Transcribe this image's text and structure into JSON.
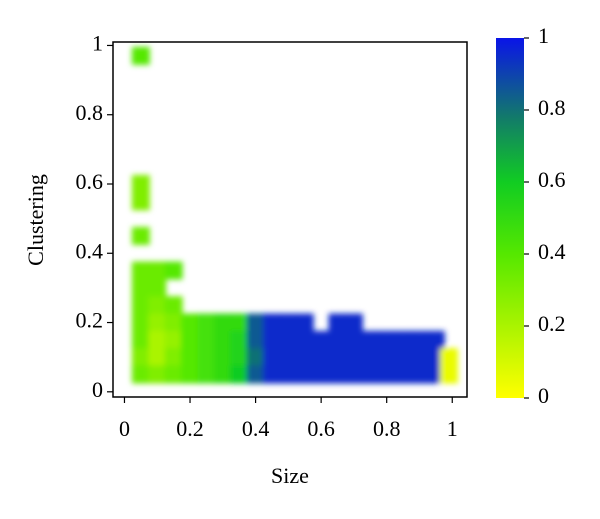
{
  "chart_data": {
    "type": "heatmap",
    "xlabel": "Size",
    "ylabel": "Clustering",
    "xlim": [
      -0.035,
      1.045
    ],
    "ylim": [
      -0.015,
      1.01
    ],
    "xticks": [
      0,
      0.2,
      0.4,
      0.6,
      0.8,
      1
    ],
    "yticks": [
      0,
      0.2,
      0.4,
      0.6,
      0.8,
      1
    ],
    "x": [
      0.05,
      0.05,
      0.05,
      0.05,
      0.05,
      0.1,
      0.15,
      0.05,
      0.1,
      0.05,
      0.1,
      0.15,
      0.05,
      0.1,
      0.15,
      0.2,
      0.25,
      0.3,
      0.35,
      0.4,
      0.45,
      0.5,
      0.55,
      0.65,
      0.7,
      0.05,
      0.1,
      0.15,
      0.2,
      0.25,
      0.3,
      0.35,
      0.4,
      0.45,
      0.5,
      0.55,
      0.6,
      0.65,
      0.7,
      0.75,
      0.8,
      0.85,
      0.9,
      0.95,
      0.05,
      0.1,
      0.15,
      0.2,
      0.25,
      0.3,
      0.35,
      0.4,
      0.45,
      0.5,
      0.55,
      0.6,
      0.65,
      0.7,
      0.75,
      0.8,
      0.85,
      0.9,
      0.95,
      0.05,
      0.1,
      0.15,
      0.2,
      0.25,
      0.3,
      0.35,
      0.4,
      0.45,
      0.5,
      0.55,
      0.6,
      0.65,
      0.7,
      0.75,
      0.8,
      0.85,
      0.9,
      0.95,
      0.99,
      0.99
    ],
    "y": [
      0.97,
      0.6,
      0.55,
      0.45,
      0.35,
      0.35,
      0.35,
      0.3,
      0.3,
      0.25,
      0.25,
      0.25,
      0.2,
      0.2,
      0.2,
      0.2,
      0.2,
      0.2,
      0.2,
      0.2,
      0.2,
      0.2,
      0.2,
      0.2,
      0.2,
      0.15,
      0.15,
      0.15,
      0.15,
      0.15,
      0.15,
      0.15,
      0.15,
      0.15,
      0.15,
      0.15,
      0.15,
      0.15,
      0.15,
      0.15,
      0.15,
      0.15,
      0.15,
      0.15,
      0.1,
      0.1,
      0.1,
      0.1,
      0.1,
      0.1,
      0.1,
      0.1,
      0.1,
      0.1,
      0.1,
      0.1,
      0.1,
      0.1,
      0.1,
      0.1,
      0.1,
      0.1,
      0.1,
      0.05,
      0.05,
      0.05,
      0.05,
      0.05,
      0.05,
      0.05,
      0.05,
      0.05,
      0.05,
      0.05,
      0.05,
      0.05,
      0.05,
      0.05,
      0.05,
      0.05,
      0.05,
      0.05,
      0.1,
      0.05
    ],
    "values": [
      0.4,
      0.3,
      0.3,
      0.35,
      0.35,
      0.35,
      0.4,
      0.35,
      0.35,
      0.35,
      0.3,
      0.35,
      0.35,
      0.25,
      0.3,
      0.4,
      0.45,
      0.5,
      0.5,
      0.85,
      0.95,
      0.95,
      0.95,
      0.95,
      0.95,
      0.35,
      0.2,
      0.25,
      0.4,
      0.45,
      0.5,
      0.55,
      0.85,
      0.95,
      0.95,
      0.95,
      0.95,
      0.95,
      0.95,
      0.95,
      0.95,
      0.95,
      0.95,
      0.95,
      0.3,
      0.2,
      0.3,
      0.4,
      0.45,
      0.5,
      0.55,
      0.8,
      0.95,
      0.95,
      0.95,
      0.95,
      0.95,
      0.95,
      0.95,
      0.95,
      0.95,
      0.95,
      0.95,
      0.35,
      0.3,
      0.35,
      0.4,
      0.45,
      0.5,
      0.6,
      0.85,
      0.95,
      0.95,
      0.95,
      0.95,
      0.95,
      0.95,
      0.95,
      0.95,
      0.95,
      0.95,
      0.95,
      0.05,
      0.05
    ],
    "colorscale": [
      [
        0,
        "#ffff00"
      ],
      [
        0.4,
        "#55e800"
      ],
      [
        0.6,
        "#11cc22"
      ],
      [
        0.78,
        "#127a6a"
      ],
      [
        1,
        "#0a14e8"
      ]
    ],
    "clim": [
      0,
      1
    ],
    "colorbar_ticks": [
      0,
      0.2,
      0.4,
      0.6,
      0.8,
      1
    ]
  }
}
